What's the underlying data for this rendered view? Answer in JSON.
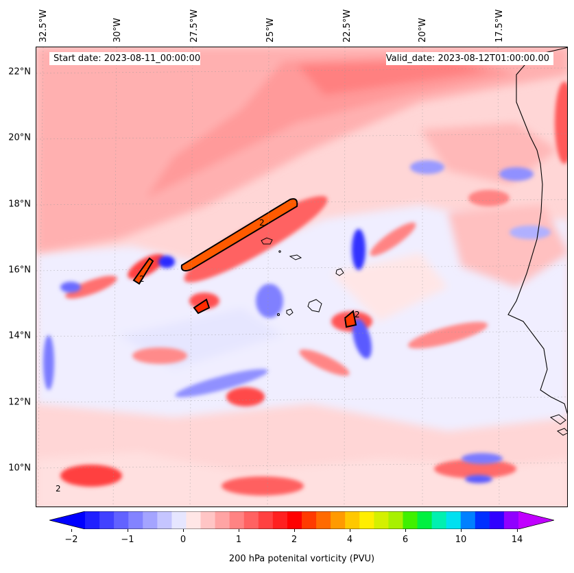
{
  "start_date_text": "Start date: 2023-08-11_00:00:00",
  "valid_date_text": "Valid_date: 2023-08-12T01:00:00.00",
  "longitude_labels": [
    "32.5°W",
    "30°W",
    "27.5°W",
    "25°W",
    "22.5°W",
    "20°W",
    "17.5°W"
  ],
  "latitude_labels": [
    "22°N",
    "20°N",
    "18°N",
    "16°N",
    "14°N",
    "12°N",
    "10°N"
  ],
  "colorbar": {
    "title": "200 hPa potenital vorticity (PVU)",
    "tick_labels": [
      "−2",
      "−1",
      "0",
      "1",
      "2",
      "4",
      "6",
      "10",
      "14"
    ],
    "colors": [
      "#0000ff",
      "#2020ff",
      "#4141ff",
      "#6262ff",
      "#8383ff",
      "#a4a4ff",
      "#c5c5ff",
      "#e6e6ff",
      "#ffe6e6",
      "#ffc5c5",
      "#ffa4a4",
      "#ff8383",
      "#ff6262",
      "#ff4141",
      "#ff2020",
      "#ff0000",
      "#ff3a00",
      "#ff6a00",
      "#ff9a00",
      "#ffc800",
      "#ffee00",
      "#d4f000",
      "#a8f000",
      "#40f000",
      "#00f040",
      "#00f0b0",
      "#00e0f0",
      "#0080ff",
      "#0030ff",
      "#3000ff",
      "#9000ff",
      "#c000ff"
    ]
  },
  "map": {
    "extent_lon": [
      -33,
      -15.5
    ],
    "extent_lat": [
      8.8,
      22.8
    ],
    "contour_level_label": "2"
  }
}
